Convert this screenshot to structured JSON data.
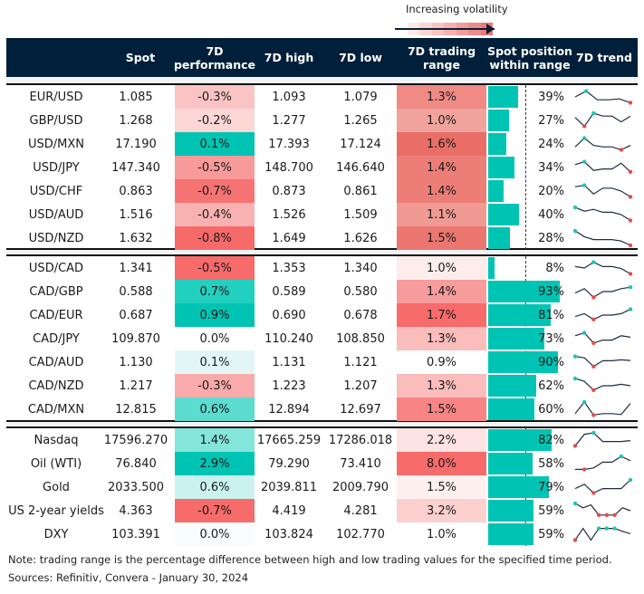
{
  "legend": {
    "label": "Increasing volatility",
    "gradient": [
      "#fdeaea",
      "#fbd6d6",
      "#f9c4c4",
      "#f6b0b0",
      "#f39d9d",
      "#f08b8b",
      "#ec7878"
    ]
  },
  "colors": {
    "header_bg": "#001f3a",
    "bar": "#00c4b3",
    "spark_line": "#1f2d3d",
    "spark_high": "#1cc6b5",
    "spark_low": "#e84a4a"
  },
  "columns": {
    "spot": "Spot",
    "perf_1": "7D",
    "perf_2": "performance",
    "high": "7D high",
    "low": "7D low",
    "range_1": "7D trading",
    "range_2": "range",
    "pos_1": "Spot position",
    "pos_2": "within range",
    "trend": "7D trend"
  },
  "groups": [
    {
      "rows": [
        {
          "label": "EUR/USD",
          "spot": "1.085",
          "perf": "-0.3%",
          "perf_color": "#fbc4c4",
          "high": "1.093",
          "low": "1.079",
          "range": "1.3%",
          "range_color": "#ef8a84",
          "pos": 39,
          "pos_text": "39%",
          "trend": [
            3,
            1,
            4,
            4,
            3.7,
            5
          ],
          "hi": [
            1
          ],
          "lo": [
            5
          ]
        },
        {
          "label": "GBP/USD",
          "spot": "1.268",
          "perf": "-0.2%",
          "perf_color": "#fdd6d6",
          "high": "1.277",
          "low": "1.265",
          "range": "1.0%",
          "range_color": "#f0a39d",
          "pos": 27,
          "pos_text": "27%",
          "trend": [
            2,
            5,
            0.5,
            1.5,
            1.5,
            3.5,
            1.5
          ],
          "hi": [
            2
          ],
          "lo": [
            1
          ]
        },
        {
          "label": "USD/MXN",
          "spot": "17.190",
          "perf": "0.1%",
          "perf_color": "#00c4b3",
          "high": "17.393",
          "low": "17.124",
          "range": "1.6%",
          "range_color": "#e96e66",
          "pos": 24,
          "pos_text": "24%",
          "trend": [
            4,
            1,
            3.5,
            4,
            4,
            5,
            3.5
          ],
          "hi": [
            1
          ],
          "lo": [
            5
          ]
        },
        {
          "label": "USD/JPY",
          "spot": "147.340",
          "perf": "-0.5%",
          "perf_color": "#f89a9a",
          "high": "148.700",
          "low": "146.640",
          "range": "1.4%",
          "range_color": "#ed7e77",
          "pos": 34,
          "pos_text": "34%",
          "trend": [
            2,
            1,
            4,
            3.5,
            3.5,
            1.5,
            4.5
          ],
          "hi": [
            1
          ],
          "lo": [
            6
          ]
        },
        {
          "label": "USD/CHF",
          "spot": "0.863",
          "perf": "-0.7%",
          "perf_color": "#f67373",
          "high": "0.873",
          "low": "0.861",
          "range": "1.4%",
          "range_color": "#ed7e77",
          "pos": 20,
          "pos_text": "20%",
          "trend": [
            1.5,
            1,
            4,
            2,
            2,
            3,
            5
          ],
          "hi": [
            1
          ],
          "lo": [
            6
          ]
        },
        {
          "label": "USD/AUD",
          "spot": "1.516",
          "perf": "-0.4%",
          "perf_color": "#f9b2b2",
          "high": "1.526",
          "low": "1.509",
          "range": "1.1%",
          "range_color": "#f09a94",
          "pos": 40,
          "pos_text": "40%",
          "trend": [
            0.5,
            1.8,
            1.2,
            2.2,
            2.2,
            3,
            5
          ],
          "hi": [
            0
          ],
          "lo": [
            6
          ]
        },
        {
          "label": "USD/NZD",
          "spot": "1.632",
          "perf": "-0.8%",
          "perf_color": "#f76a6a",
          "high": "1.649",
          "low": "1.626",
          "range": "1.5%",
          "range_color": "#eb7770",
          "pos": 28,
          "pos_text": "28%",
          "trend": [
            0.5,
            2.5,
            3.5,
            3.5,
            3.5,
            4,
            5.5
          ],
          "hi": [
            0
          ],
          "lo": [
            6
          ]
        }
      ]
    },
    {
      "rows": [
        {
          "label": "USD/CAD",
          "spot": "1.341",
          "perf": "-0.5%",
          "perf_color": "#f76b6b",
          "high": "1.353",
          "low": "1.340",
          "range": "1.0%",
          "range_color": "#fdecec",
          "pos": 8,
          "pos_text": "8%",
          "trend": [
            2.5,
            3,
            1,
            2.5,
            2.5,
            3.2,
            5
          ],
          "hi": [
            2
          ],
          "lo": [
            6
          ]
        },
        {
          "label": "CAD/GBP",
          "spot": "0.588",
          "perf": "0.7%",
          "perf_color": "#22d0bf",
          "high": "0.589",
          "low": "0.580",
          "range": "1.4%",
          "range_color": "#f79c9c",
          "pos": 93,
          "pos_text": "93%",
          "trend": [
            3.5,
            2,
            5,
            3,
            3,
            2,
            1.5
          ],
          "hi": [
            6
          ],
          "lo": [
            2
          ]
        },
        {
          "label": "CAD/EUR",
          "spot": "0.687",
          "perf": "0.9%",
          "perf_color": "#00c4b3",
          "high": "0.690",
          "low": "0.678",
          "range": "1.7%",
          "range_color": "#f76b6b",
          "pos": 81,
          "pos_text": "81%",
          "trend": [
            3.5,
            2.5,
            4.5,
            3,
            3,
            2.5,
            1
          ],
          "hi": [
            6
          ],
          "lo": [
            2
          ]
        },
        {
          "label": "CAD/JPY",
          "spot": "109.870",
          "perf": "0.0%",
          "perf_color": "#ffffff",
          "high": "110.240",
          "low": "108.850",
          "range": "1.3%",
          "range_color": "#fbbcbc",
          "pos": 73,
          "pos_text": "73%",
          "trend": [
            2,
            1,
            4.5,
            3.5,
            3.5,
            2,
            2.5
          ],
          "hi": [
            1
          ],
          "lo": [
            2
          ]
        },
        {
          "label": "CAD/AUD",
          "spot": "1.130",
          "perf": "0.1%",
          "perf_color": "#e2f7f5",
          "high": "1.131",
          "low": "1.121",
          "range": "0.9%",
          "range_color": "#ffffff",
          "pos": 90,
          "pos_text": "90%",
          "trend": [
            1,
            1.5,
            4.5,
            2.5,
            2.5,
            2.2,
            2.4
          ],
          "hi": [
            0
          ],
          "lo": [
            2
          ]
        },
        {
          "label": "CAD/NZD",
          "spot": "1.217",
          "perf": "-0.3%",
          "perf_color": "#f9aaaa",
          "high": "1.223",
          "low": "1.207",
          "range": "1.3%",
          "range_color": "#fbbcbc",
          "pos": 62,
          "pos_text": "62%",
          "trend": [
            0.5,
            1.5,
            4.5,
            3,
            3,
            2.5,
            3
          ],
          "hi": [
            0
          ],
          "lo": [
            2
          ]
        },
        {
          "label": "CAD/MXN",
          "spot": "12.815",
          "perf": "0.6%",
          "perf_color": "#5cdccf",
          "high": "12.894",
          "low": "12.697",
          "range": "1.5%",
          "range_color": "#f88484",
          "pos": 60,
          "pos_text": "60%",
          "trend": [
            4.5,
            0.5,
            5,
            4.5,
            4.5,
            4.8,
            1
          ],
          "hi": [
            1
          ],
          "lo": [
            2
          ]
        }
      ]
    },
    {
      "rows": [
        {
          "label": "Nasdaq",
          "spot": "17596.270",
          "perf": "1.4%",
          "perf_color": "#84e5db",
          "high": "17665.259",
          "low": "17286.018",
          "range": "2.2%",
          "range_color": "#fde3e3",
          "pos": 82,
          "pos_text": "82%",
          "trend": [
            5,
            1,
            0.5,
            3.5,
            3.5,
            3.5,
            3.2
          ],
          "hi": [
            2
          ],
          "lo": [
            0
          ]
        },
        {
          "label": "Oil (WTI)",
          "spot": "76.840",
          "perf": "2.9%",
          "perf_color": "#00c4b3",
          "high": "79.290",
          "low": "73.410",
          "range": "8.0%",
          "range_color": "#f76b6b",
          "pos": 58,
          "pos_text": "58%",
          "trend": [
            5,
            5,
            4.5,
            2.5,
            2.5,
            0.5,
            2
          ],
          "hi": [
            5
          ],
          "lo": [
            1
          ]
        },
        {
          "label": "Gold",
          "spot": "2033.500",
          "perf": "0.6%",
          "perf_color": "#caf3ef",
          "high": "2039.811",
          "low": "2009.790",
          "range": "1.5%",
          "range_color": "#fff0f0",
          "pos": 79,
          "pos_text": "79%",
          "trend": [
            3.5,
            2,
            5,
            3.5,
            3.5,
            3.5,
            0.5
          ],
          "hi": [
            6
          ],
          "lo": [
            2
          ]
        },
        {
          "label": "US 2-year yields",
          "spot": "4.363",
          "perf": "-0.7%",
          "perf_color": "#f76b6b",
          "high": "4.419",
          "low": "4.281",
          "range": "3.2%",
          "range_color": "#fdd0d0",
          "pos": 59,
          "pos_text": "59%",
          "trend": [
            0.5,
            2,
            1,
            4.5,
            4.5,
            4.5,
            2,
            3
          ],
          "hi": [
            0
          ],
          "lo": [
            3,
            4,
            5
          ]
        },
        {
          "label": "DXY",
          "spot": "103.391",
          "perf": "0.0%",
          "perf_color": "#f7fdfd",
          "high": "103.824",
          "low": "102.770",
          "range": "1.0%",
          "range_color": "#ffffff",
          "pos": 59,
          "pos_text": "59%",
          "trend": [
            5,
            1,
            5,
            1,
            1,
            1,
            2,
            2.8
          ],
          "hi": [
            3,
            4,
            5
          ],
          "lo": [
            0
          ]
        }
      ]
    }
  ],
  "footer": {
    "note": "Note: trading range is the percentage difference between high and low trading values for the specified time period.",
    "sources": "Sources: Refinitiv, Convera - January 30, 2024"
  }
}
